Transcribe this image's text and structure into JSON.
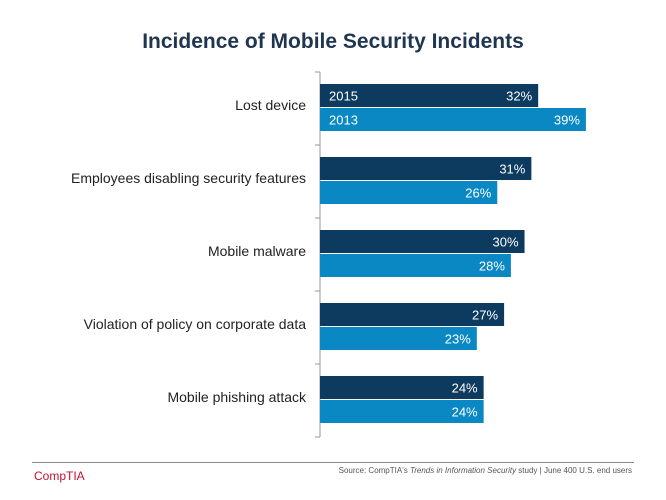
{
  "colors": {
    "series_2015": "#0d3a5f",
    "series_2013": "#0a88c4",
    "axis": "#9a9a9a",
    "title": "#1f3550",
    "brand": "#c8102e"
  },
  "chart_data": {
    "type": "bar",
    "orientation": "horizontal",
    "title": "Incidence of Mobile Security Incidents",
    "categories": [
      "Lost device",
      "Employees disabling security features",
      "Mobile malware",
      "Violation of policy on corporate data",
      "Mobile phishing attack"
    ],
    "series": [
      {
        "name": "2015",
        "values": [
          32,
          31,
          30,
          27,
          24
        ],
        "labels": [
          "32%",
          "31%",
          "30%",
          "27%",
          "24%"
        ]
      },
      {
        "name": "2013",
        "values": [
          39,
          26,
          28,
          23,
          24
        ],
        "labels": [
          "39%",
          "26%",
          "28%",
          "23%",
          "24%"
        ]
      }
    ],
    "xlim": [
      0,
      44
    ],
    "legend": "inside-first-category",
    "grid": false,
    "xlabel": "",
    "ylabel": ""
  },
  "footer": {
    "brand": "CompTIA",
    "source_prefix": "Source: CompTIA's ",
    "source_study": "Trends in Information Security",
    "source_suffix": " study  |  June  400 U.S. end users"
  }
}
